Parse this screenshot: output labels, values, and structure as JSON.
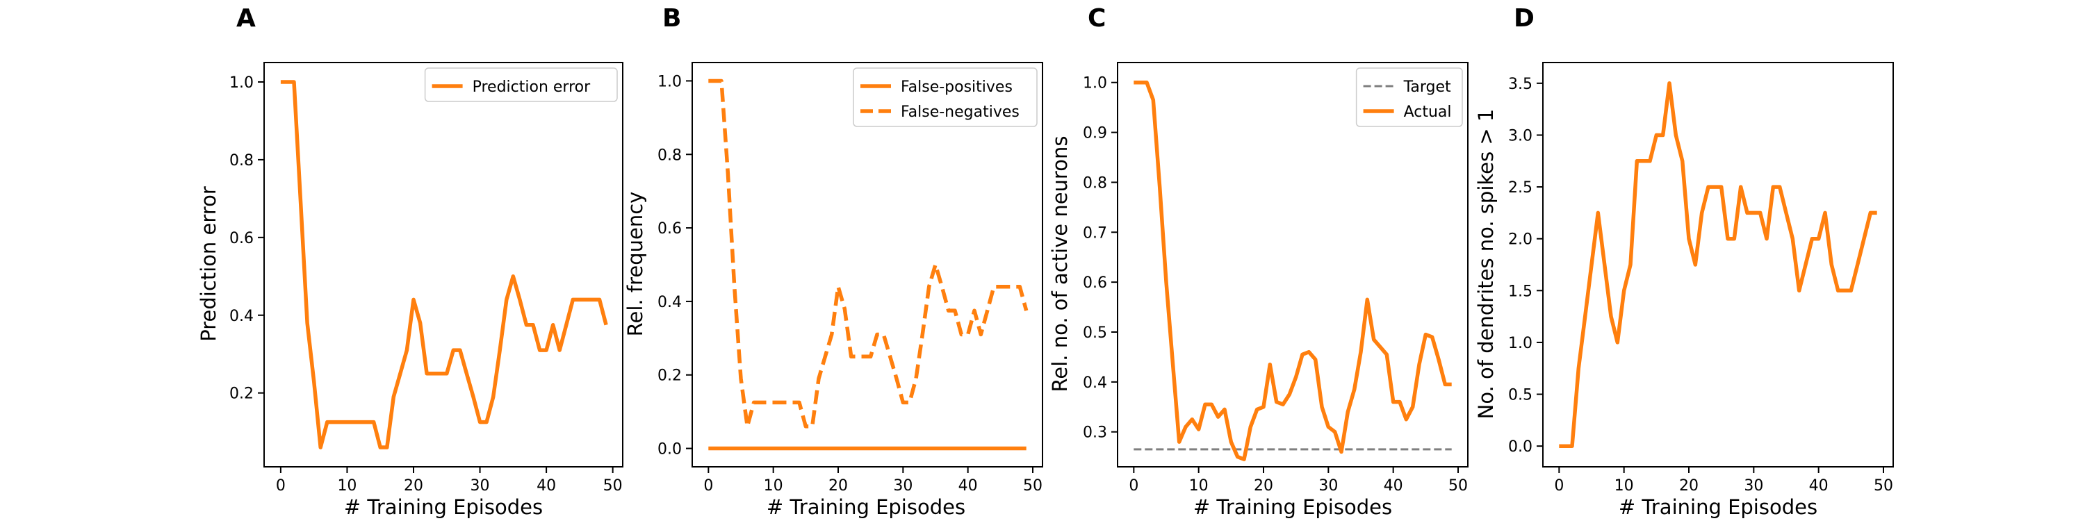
{
  "colors": {
    "series": "#ff7f0e",
    "target": "#7f7f7f",
    "axis": "#000000",
    "background": "#ffffff"
  },
  "chart_data": [
    {
      "panel": "A",
      "type": "line",
      "xlabel": "# Training Episodes",
      "ylabel": "Prediction error",
      "xlim": [
        -2.5,
        51.5
      ],
      "ylim": [
        0.01,
        1.05
      ],
      "xticks": [
        0,
        10,
        20,
        30,
        40,
        50
      ],
      "yticks": [
        0.2,
        0.4,
        0.6,
        0.8,
        1.0
      ],
      "ytick_labels": [
        "0.2",
        "0.4",
        "0.6",
        "0.8",
        "1.0"
      ],
      "legend": "top-right",
      "series": [
        {
          "name": "Prediction error",
          "style": "solid",
          "x": [
            0,
            1,
            2,
            3,
            4,
            5,
            6,
            7,
            8,
            9,
            10,
            11,
            12,
            13,
            14,
            15,
            16,
            17,
            18,
            19,
            20,
            21,
            22,
            23,
            24,
            25,
            26,
            27,
            28,
            29,
            30,
            31,
            32,
            33,
            34,
            35,
            36,
            37,
            38,
            39,
            40,
            41,
            42,
            43,
            44,
            45,
            46,
            47,
            48,
            49
          ],
          "y": [
            1.0,
            1.0,
            1.0,
            0.69,
            0.38,
            0.23,
            0.06,
            0.125,
            0.125,
            0.125,
            0.125,
            0.125,
            0.125,
            0.125,
            0.125,
            0.06,
            0.06,
            0.19,
            0.25,
            0.31,
            0.44,
            0.38,
            0.25,
            0.25,
            0.25,
            0.25,
            0.31,
            0.31,
            0.25,
            0.19,
            0.125,
            0.125,
            0.19,
            0.31,
            0.44,
            0.5,
            0.44,
            0.375,
            0.375,
            0.31,
            0.31,
            0.375,
            0.31,
            0.375,
            0.44,
            0.44,
            0.44,
            0.44,
            0.44,
            0.375
          ]
        }
      ]
    },
    {
      "panel": "B",
      "type": "line",
      "xlabel": "# Training Episodes",
      "ylabel": "Rel. frequency",
      "xlim": [
        -2.5,
        51.5
      ],
      "ylim": [
        -0.05,
        1.05
      ],
      "xticks": [
        0,
        10,
        20,
        30,
        40,
        50
      ],
      "yticks": [
        0.0,
        0.2,
        0.4,
        0.6,
        0.8,
        1.0
      ],
      "ytick_labels": [
        "0.0",
        "0.2",
        "0.4",
        "0.6",
        "0.8",
        "1.0"
      ],
      "legend": "top-right",
      "series": [
        {
          "name": "False-positives",
          "style": "solid",
          "x": [
            0,
            49
          ],
          "y": [
            0,
            0
          ]
        },
        {
          "name": "False-negatives",
          "style": "dashed",
          "x": [
            0,
            1,
            2,
            3,
            4,
            5,
            6,
            7,
            8,
            9,
            10,
            11,
            12,
            13,
            14,
            15,
            16,
            17,
            18,
            19,
            20,
            21,
            22,
            23,
            24,
            25,
            26,
            27,
            28,
            29,
            30,
            31,
            32,
            33,
            34,
            35,
            36,
            37,
            38,
            39,
            40,
            41,
            42,
            43,
            44,
            45,
            46,
            47,
            48,
            49
          ],
          "y": [
            1.0,
            1.0,
            1.0,
            0.75,
            0.44,
            0.19,
            0.06,
            0.125,
            0.125,
            0.125,
            0.125,
            0.125,
            0.125,
            0.125,
            0.125,
            0.06,
            0.06,
            0.19,
            0.25,
            0.31,
            0.44,
            0.38,
            0.25,
            0.25,
            0.25,
            0.25,
            0.31,
            0.31,
            0.25,
            0.19,
            0.125,
            0.125,
            0.19,
            0.31,
            0.44,
            0.5,
            0.44,
            0.375,
            0.375,
            0.31,
            0.31,
            0.375,
            0.31,
            0.375,
            0.44,
            0.44,
            0.44,
            0.44,
            0.44,
            0.375
          ]
        }
      ]
    },
    {
      "panel": "C",
      "type": "line",
      "xlabel": "# Training Episodes",
      "ylabel": "Rel. no. of active neurons",
      "xlim": [
        -2.5,
        51.5
      ],
      "ylim": [
        0.23,
        1.04
      ],
      "xticks": [
        0,
        10,
        20,
        30,
        40,
        50
      ],
      "yticks": [
        0.3,
        0.4,
        0.5,
        0.6,
        0.7,
        0.8,
        0.9,
        1.0
      ],
      "ytick_labels": [
        "0.3",
        "0.4",
        "0.5",
        "0.6",
        "0.7",
        "0.8",
        "0.9",
        "1.0"
      ],
      "legend": "top-right",
      "series": [
        {
          "name": "Target",
          "style": "dashed",
          "x": [
            0,
            49
          ],
          "y": [
            0.265,
            0.265
          ]
        },
        {
          "name": "Actual",
          "style": "solid",
          "x": [
            0,
            1,
            2,
            3,
            4,
            5,
            6,
            7,
            8,
            9,
            10,
            11,
            12,
            13,
            14,
            15,
            16,
            17,
            18,
            19,
            20,
            21,
            22,
            23,
            24,
            25,
            26,
            27,
            28,
            29,
            30,
            31,
            32,
            33,
            34,
            35,
            36,
            37,
            38,
            39,
            40,
            41,
            42,
            43,
            44,
            45,
            46,
            47,
            48,
            49
          ],
          "y": [
            1.0,
            1.0,
            1.0,
            0.965,
            0.79,
            0.6,
            0.44,
            0.28,
            0.31,
            0.325,
            0.305,
            0.355,
            0.355,
            0.33,
            0.345,
            0.28,
            0.25,
            0.245,
            0.31,
            0.345,
            0.35,
            0.435,
            0.36,
            0.355,
            0.375,
            0.41,
            0.455,
            0.46,
            0.445,
            0.35,
            0.31,
            0.3,
            0.26,
            0.34,
            0.385,
            0.46,
            0.565,
            0.485,
            0.47,
            0.455,
            0.36,
            0.36,
            0.325,
            0.35,
            0.435,
            0.495,
            0.49,
            0.445,
            0.395,
            0.395
          ]
        }
      ]
    },
    {
      "panel": "D",
      "type": "line",
      "xlabel": "# Training Episodes",
      "ylabel": "No. of dendrites no. spikes > 1",
      "xlim": [
        -2.5,
        51.5
      ],
      "ylim": [
        -0.2,
        3.7
      ],
      "xticks": [
        0,
        10,
        20,
        30,
        40,
        50
      ],
      "yticks": [
        0.0,
        0.5,
        1.0,
        1.5,
        2.0,
        2.5,
        3.0,
        3.5
      ],
      "ytick_labels": [
        "0.0",
        "0.5",
        "1.0",
        "1.5",
        "2.0",
        "2.5",
        "3.0",
        "3.5"
      ],
      "legend": "none",
      "series": [
        {
          "name": "",
          "style": "solid",
          "x": [
            0,
            1,
            2,
            3,
            4,
            5,
            6,
            7,
            8,
            9,
            10,
            11,
            12,
            13,
            14,
            15,
            16,
            17,
            18,
            19,
            20,
            21,
            22,
            23,
            24,
            25,
            26,
            27,
            28,
            29,
            30,
            31,
            32,
            33,
            34,
            35,
            36,
            37,
            38,
            39,
            40,
            41,
            42,
            43,
            44,
            45,
            46,
            47,
            48,
            49
          ],
          "y": [
            0,
            0,
            0,
            0.75,
            1.25,
            1.75,
            2.25,
            1.75,
            1.25,
            1.0,
            1.5,
            1.75,
            2.75,
            2.75,
            2.75,
            3.0,
            3.0,
            3.5,
            3.0,
            2.75,
            2.0,
            1.75,
            2.25,
            2.5,
            2.5,
            2.5,
            2.0,
            2.0,
            2.5,
            2.25,
            2.25,
            2.25,
            2.0,
            2.5,
            2.5,
            2.25,
            2.0,
            1.5,
            1.75,
            2.0,
            2.0,
            2.25,
            1.75,
            1.5,
            1.5,
            1.5,
            1.75,
            2.0,
            2.25,
            2.25
          ]
        }
      ]
    }
  ]
}
